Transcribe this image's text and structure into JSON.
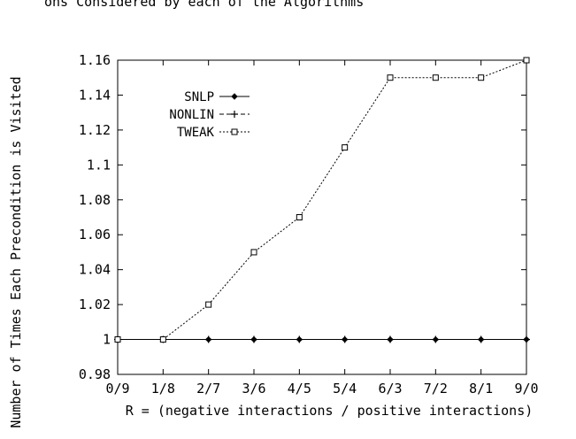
{
  "figure": {
    "top_caption": "ons Considered by each of the Algorithms"
  },
  "chart_data": {
    "type": "line",
    "categories": [
      "0/9",
      "1/8",
      "2/7",
      "3/6",
      "4/5",
      "5/4",
      "6/3",
      "7/2",
      "8/1",
      "9/0"
    ],
    "series": [
      {
        "name": "SNLP",
        "marker": "diamond",
        "dash": "solid",
        "values": [
          1,
          1,
          1,
          1,
          1,
          1,
          1,
          1,
          1,
          1
        ]
      },
      {
        "name": "NONLIN",
        "marker": "plus",
        "dash": "dashed",
        "values": [
          1,
          1,
          1,
          1,
          1,
          1,
          1,
          1,
          1,
          1
        ]
      },
      {
        "name": "TWEAK",
        "marker": "square",
        "dash": "dotted",
        "values": [
          1,
          1,
          1.02,
          1.05,
          1.07,
          1.11,
          1.15,
          1.15,
          1.15,
          1.16
        ]
      }
    ],
    "xlabel": "R = (negative interactions / positive interactions)",
    "ylabel": "Number of Times Each Precondition is Visited",
    "ylim": [
      0.98,
      1.16
    ],
    "yticks": [
      "0.98",
      "1",
      "1.02",
      "1.04",
      "1.06",
      "1.08",
      "1.1",
      "1.12",
      "1.14",
      "1.16"
    ],
    "grid": false,
    "legend_position": "top-left",
    "line_color": "#000000"
  }
}
